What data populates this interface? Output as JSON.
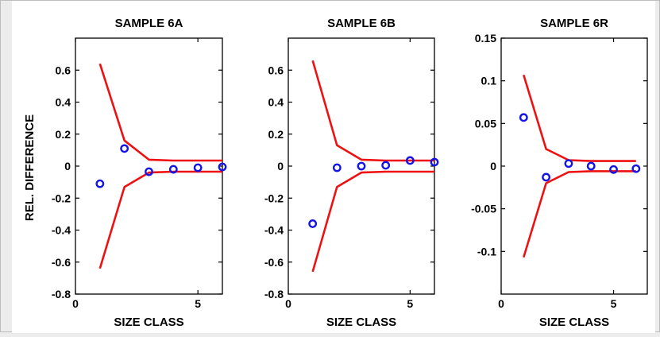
{
  "figure": {
    "ylabel": "REL. DIFFERENCE",
    "colors": {
      "envelope": "#ee1111",
      "points": "#1414e6",
      "axes": "#000000",
      "background": "#ffffff",
      "window": "#ececec"
    }
  },
  "chart_data": [
    {
      "type": "line",
      "title": "SAMPLE 6A",
      "xlabel": "SIZE CLASS",
      "ylabel": "REL. DIFFERENCE",
      "xlim": [
        0,
        6
      ],
      "ylim": [
        -0.8,
        0.8
      ],
      "xticks": [
        0,
        5
      ],
      "xtick_labels": [
        "0",
        "5"
      ],
      "yticks": [
        -0.8,
        -0.6,
        -0.4,
        -0.2,
        0,
        0.2,
        0.4,
        0.6
      ],
      "ytick_labels": [
        "-0.8",
        "-0.6",
        "-0.4",
        "-0.2",
        "0",
        "0.2",
        "0.4",
        "0.6"
      ],
      "grid": false,
      "series": [
        {
          "kind": "line",
          "x": [
            1,
            2,
            3,
            4,
            5,
            6
          ],
          "y": [
            0.64,
            0.16,
            0.04,
            0.035,
            0.035,
            0.035
          ]
        },
        {
          "kind": "line",
          "x": [
            1,
            2,
            3,
            4,
            5,
            6
          ],
          "y": [
            -0.64,
            -0.13,
            -0.04,
            -0.035,
            -0.035,
            -0.035
          ]
        },
        {
          "kind": "scatter",
          "marker": "circle",
          "x": [
            1,
            2,
            3,
            4,
            5,
            6
          ],
          "y": [
            -0.11,
            0.11,
            -0.035,
            -0.02,
            -0.01,
            -0.005
          ]
        }
      ]
    },
    {
      "type": "line",
      "title": "SAMPLE 6B",
      "xlabel": "SIZE CLASS",
      "ylabel": "",
      "xlim": [
        0,
        6
      ],
      "ylim": [
        -0.8,
        0.8
      ],
      "xticks": [
        0,
        5
      ],
      "xtick_labels": [
        "0",
        "5"
      ],
      "yticks": [
        -0.8,
        -0.6,
        -0.4,
        -0.2,
        0,
        0.2,
        0.4,
        0.6
      ],
      "ytick_labels": [
        "-0.8",
        "-0.6",
        "-0.4",
        "-0.2",
        "0",
        "0.2",
        "0.4",
        "0.6"
      ],
      "grid": false,
      "series": [
        {
          "kind": "line",
          "x": [
            1,
            2,
            3,
            4,
            5,
            6
          ],
          "y": [
            0.66,
            0.13,
            0.04,
            0.035,
            0.035,
            0.035
          ]
        },
        {
          "kind": "line",
          "x": [
            1,
            2,
            3,
            4,
            5,
            6
          ],
          "y": [
            -0.66,
            -0.13,
            -0.04,
            -0.035,
            -0.035,
            -0.035
          ]
        },
        {
          "kind": "scatter",
          "marker": "circle",
          "x": [
            1,
            2,
            3,
            4,
            5,
            6
          ],
          "y": [
            -0.36,
            -0.01,
            0.0,
            0.005,
            0.035,
            0.025
          ]
        }
      ]
    },
    {
      "type": "line",
      "title": "SAMPLE 6R",
      "xlabel": "SIZE CLASS",
      "ylabel": "",
      "xlim": [
        0,
        6.5
      ],
      "ylim": [
        -0.15,
        0.15
      ],
      "xticks": [
        0,
        5
      ],
      "xtick_labels": [
        "0",
        "5"
      ],
      "yticks": [
        -0.1,
        -0.05,
        0,
        0.05,
        0.1,
        0.15
      ],
      "ytick_labels": [
        "-0.1",
        "-0.05",
        "0",
        "0.05",
        "0.1",
        "0.15"
      ],
      "grid": false,
      "series": [
        {
          "kind": "line",
          "x": [
            1,
            2,
            3,
            4,
            5,
            6
          ],
          "y": [
            0.107,
            0.02,
            0.007,
            0.006,
            0.006,
            0.006
          ]
        },
        {
          "kind": "line",
          "x": [
            1,
            2,
            3,
            4,
            5,
            6
          ],
          "y": [
            -0.107,
            -0.02,
            -0.007,
            -0.006,
            -0.006,
            -0.006
          ]
        },
        {
          "kind": "scatter",
          "marker": "circle",
          "x": [
            1,
            2,
            3,
            4,
            5,
            6
          ],
          "y": [
            0.057,
            -0.013,
            0.003,
            0.0,
            -0.004,
            -0.003
          ]
        }
      ]
    }
  ]
}
